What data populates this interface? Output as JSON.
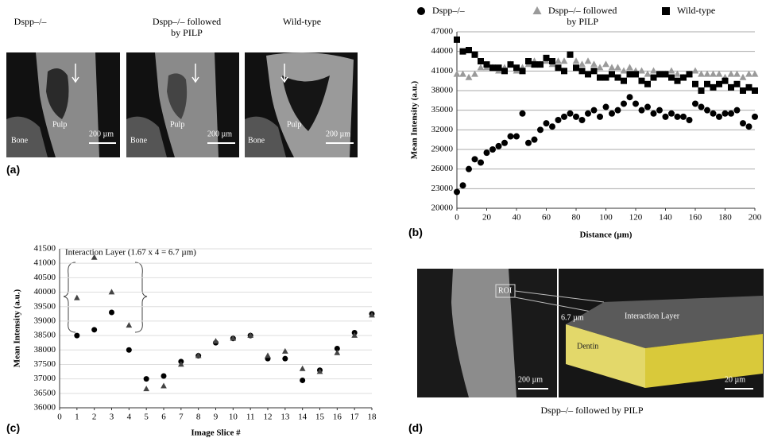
{
  "chart_data": [
    {
      "type": "scatter",
      "panel_label": "(b)",
      "x_label": "Distance (µm)",
      "y_label": "Mean Intensity (a.u.)",
      "x": [
        0,
        4,
        8,
        12,
        16,
        20,
        24,
        28,
        32,
        36,
        40,
        44,
        48,
        52,
        56,
        60,
        64,
        68,
        72,
        76,
        80,
        84,
        88,
        92,
        96,
        100,
        104,
        108,
        112,
        116,
        120,
        124,
        128,
        132,
        136,
        140,
        144,
        148,
        152,
        156,
        160,
        164,
        168,
        172,
        176,
        180,
        184,
        188,
        192,
        196,
        200
      ],
      "series": [
        {
          "name": "Dspp–/–",
          "marker": "circle",
          "color": "#000000",
          "values": [
            22500,
            23500,
            26000,
            27500,
            27000,
            28500,
            29000,
            29500,
            30000,
            31000,
            31000,
            34500,
            30000,
            30500,
            32000,
            33000,
            32500,
            33500,
            34000,
            34500,
            34000,
            33500,
            34500,
            35000,
            34000,
            35500,
            34500,
            35000,
            36000,
            37000,
            36000,
            35000,
            35500,
            34500,
            35000,
            34000,
            34500,
            34000,
            34000,
            33500,
            36000,
            35500,
            35000,
            34500,
            34000,
            34500,
            34500,
            35000,
            33000,
            32500,
            34000
          ]
        },
        {
          "name": "Dspp–/– followed\nby PILP",
          "marker": "triangle",
          "color": "#9a9a9a",
          "values": [
            40500,
            40500,
            40000,
            40500,
            41500,
            41500,
            41500,
            41000,
            41500,
            42000,
            41000,
            41500,
            42000,
            42500,
            42000,
            42500,
            42000,
            42500,
            42500,
            43500,
            42500,
            42000,
            42500,
            42000,
            41500,
            42000,
            41500,
            41500,
            41000,
            41500,
            41000,
            41000,
            40500,
            41000,
            40500,
            40500,
            41000,
            40500,
            40000,
            40500,
            41000,
            40500,
            40500,
            40500,
            40500,
            40000,
            40500,
            40500,
            40000,
            40500,
            40500
          ]
        },
        {
          "name": "Wild-type",
          "marker": "square",
          "color": "#000000",
          "values": [
            45800,
            44000,
            44200,
            43500,
            42500,
            42000,
            41500,
            41500,
            41000,
            42000,
            41500,
            41000,
            42500,
            42000,
            42000,
            43000,
            42500,
            41500,
            41000,
            43500,
            41500,
            41000,
            40500,
            41000,
            40000,
            40000,
            40500,
            40000,
            39500,
            40500,
            40500,
            39500,
            39000,
            40000,
            40500,
            40500,
            40000,
            39500,
            40000,
            40500,
            39000,
            38000,
            39000,
            38500,
            39000,
            39500,
            38500,
            39000,
            38000,
            38500,
            38000
          ]
        }
      ],
      "xlim": [
        0,
        200
      ],
      "xticks": [
        0,
        20,
        40,
        60,
        80,
        100,
        120,
        140,
        160,
        180,
        200
      ],
      "ylim": [
        20000,
        47000
      ],
      "yticks": [
        20000,
        23000,
        26000,
        29000,
        32000,
        35000,
        38000,
        41000,
        44000,
        47000
      ],
      "grid": true
    },
    {
      "type": "scatter",
      "panel_label": "(c)",
      "x_label": "Image Slice #",
      "y_label": "Mean Intensity (a.u.)",
      "annotation": "Interaction  Layer (1.67 x 4 = 6.7 µm)",
      "x": [
        1,
        2,
        3,
        4,
        5,
        6,
        7,
        8,
        9,
        10,
        11,
        12,
        13,
        14,
        15,
        16,
        17,
        18
      ],
      "series": [
        {
          "marker": "circle",
          "color": "#000000",
          "values": [
            38500,
            38700,
            39300,
            38000,
            37000,
            37100,
            37600,
            37800,
            38250,
            38400,
            38500,
            37700,
            37700,
            36950,
            37300,
            38050,
            38600,
            39250
          ]
        },
        {
          "marker": "triangle",
          "color": "#444444",
          "values": [
            39800,
            41200,
            40000,
            38850,
            36650,
            36750,
            37500,
            37800,
            38300,
            38400,
            38500,
            37800,
            37950,
            37350,
            37250,
            37900,
            38500,
            39200
          ]
        }
      ],
      "xlim": [
        0,
        18
      ],
      "xticks": [
        0,
        1,
        2,
        3,
        4,
        5,
        6,
        7,
        8,
        9,
        10,
        11,
        12,
        13,
        14,
        15,
        16,
        17,
        18
      ],
      "ylim": [
        36000,
        41500
      ],
      "yticks": [
        36000,
        36500,
        37000,
        37500,
        38000,
        38500,
        39000,
        39500,
        40000,
        40500,
        41000,
        41500
      ],
      "grid": true
    }
  ],
  "panel_a": {
    "label": "(a)",
    "images": [
      {
        "title": "Dspp–/–",
        "texts": [
          "Bone",
          "Pulp",
          "200 µm"
        ]
      },
      {
        "title": "Dspp–/– followed\nby PILP",
        "texts": [
          "Bone",
          "Pulp",
          "200 µm"
        ]
      },
      {
        "title": "Wild-type",
        "texts": [
          "Bone",
          "Pulp",
          "200 µm"
        ]
      }
    ]
  },
  "panel_d": {
    "label": "(d)",
    "caption": "Dspp–/– followed by PILP",
    "roi": "ROI",
    "scale_left": "200 µm",
    "thickness": "6.7 µm",
    "layer": "Interaction  Layer",
    "dentin": "Dentin",
    "scale_right": "20 µm"
  }
}
